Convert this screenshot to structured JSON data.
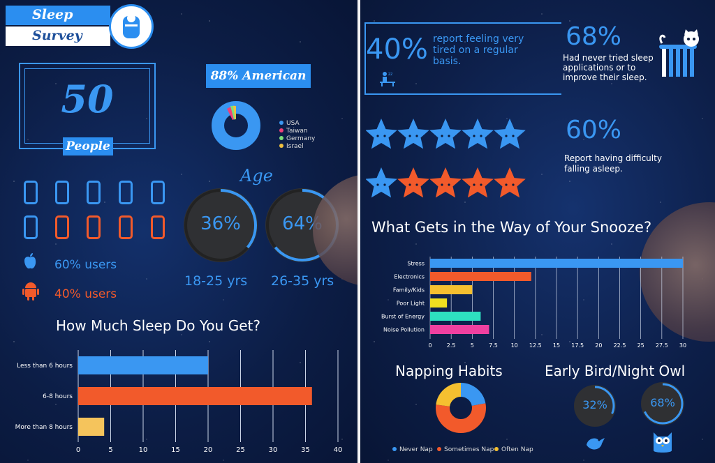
{
  "survey": {
    "title_line1": "Sleep",
    "title_line2": "Survey"
  },
  "participants": {
    "count": "50",
    "label": "People"
  },
  "nationality": {
    "title": "88% American",
    "legend": [
      {
        "label": "USA",
        "color": "#3a97f2"
      },
      {
        "label": "Taiwan",
        "color": "#f0407a"
      },
      {
        "label": "Germany",
        "color": "#7ee07a"
      },
      {
        "label": "Israel",
        "color": "#f0c040"
      }
    ]
  },
  "devices": {
    "ios_label": "60% users",
    "android_label": "40% users",
    "ios_color": "#3a97f2",
    "android_color": "#f25a2b"
  },
  "age": {
    "title": "Age",
    "groups": [
      {
        "percent": "36%",
        "range": "18-25 yrs"
      },
      {
        "percent": "64%",
        "range": "26-35 yrs"
      }
    ]
  },
  "tired": {
    "percent": "40%",
    "text": "report feeling very tired on a regular basis."
  },
  "apps": {
    "percent": "68%",
    "text": "Had never tried sleep applications or to improve their sleep."
  },
  "difficulty": {
    "percent": "60%",
    "text": "Report having difficulty falling asleep."
  },
  "chart_data": [
    {
      "type": "bar",
      "title": "How Much Sleep Do You Get?",
      "categories": [
        "Less than 6 hours",
        "6-8 hours",
        "More than 8 hours"
      ],
      "values": [
        20,
        36,
        4
      ],
      "colors": [
        "#3a97f2",
        "#f25a2b",
        "#f5c45c"
      ],
      "xlim": [
        0,
        40
      ],
      "xticks": [
        0,
        5,
        10,
        15,
        20,
        25,
        30,
        35,
        40
      ],
      "grid": true
    },
    {
      "type": "bar",
      "title": "What Gets in the Way of Your Snooze?",
      "categories": [
        "Stress",
        "Electronics",
        "Family/Kids",
        "Poor Light",
        "Burst of Energy",
        "Noise Pollution"
      ],
      "values": [
        30,
        12,
        5,
        2,
        6,
        7
      ],
      "colors": [
        "#3a97f2",
        "#f25a2b",
        "#f5c030",
        "#f0e020",
        "#2ee0c0",
        "#f040a0"
      ],
      "xlim": [
        0,
        30
      ],
      "xticks": [
        "0",
        "2.5",
        "5",
        "7.5",
        "10",
        "12.5",
        "15",
        "17.5",
        "20",
        "22.5",
        "25",
        "27.5",
        "30"
      ],
      "grid": true
    },
    {
      "type": "pie",
      "title": "Napping Habits",
      "labels": [
        "Never Nap",
        "Sometimes Nap",
        "Often Nap"
      ],
      "values": [
        22,
        55,
        23
      ],
      "colors": [
        "#3a97f2",
        "#f25a2b",
        "#f5c030"
      ]
    },
    {
      "type": "pie",
      "title": "Early Bird/Night Owl",
      "labels": [
        "32%",
        "68%"
      ],
      "values": [
        32,
        68
      ],
      "colors": [
        "#3a97f2",
        "#3a97f2"
      ]
    }
  ]
}
